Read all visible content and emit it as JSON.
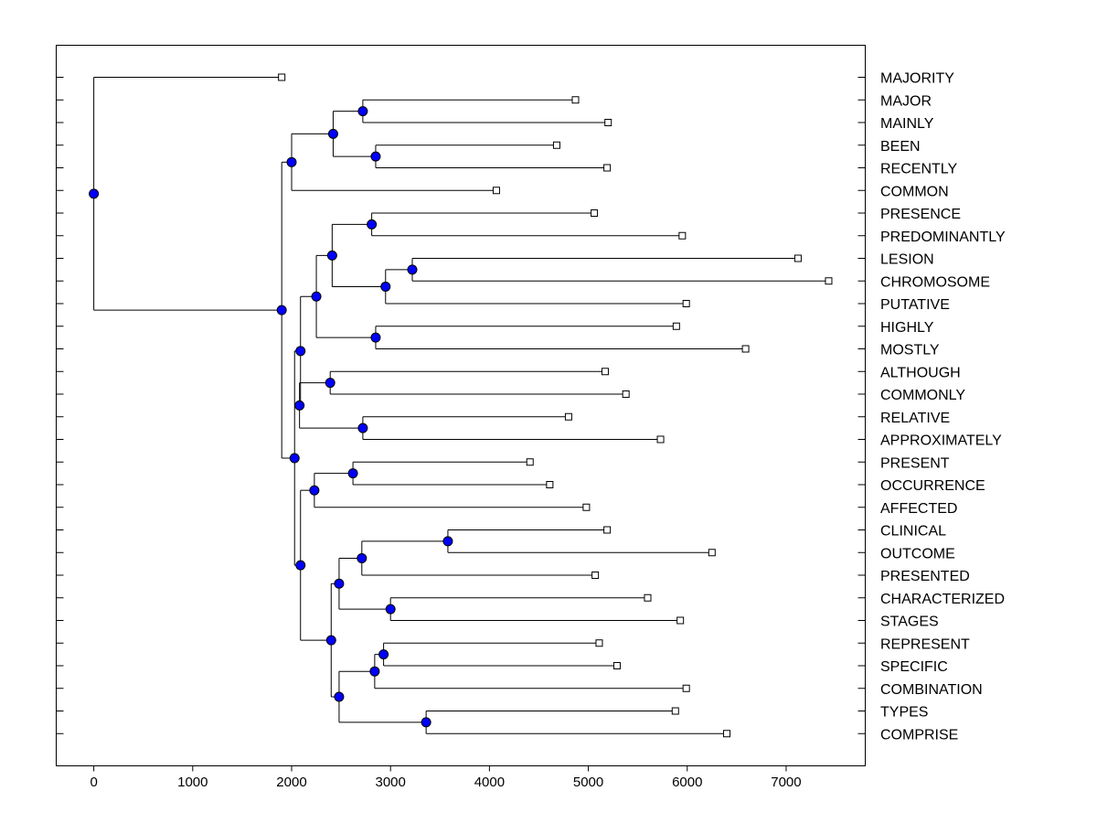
{
  "chart_data": {
    "type": "dendrogram",
    "title": "",
    "xlabel": "",
    "ylabel": "",
    "xlim": [
      -380,
      7800
    ],
    "xticks": [
      0,
      1000,
      2000,
      3000,
      4000,
      5000,
      6000,
      7000
    ],
    "xtick_labels": [
      "0",
      "1000",
      "2000",
      "3000",
      "4000",
      "5000",
      "6000",
      "7000"
    ],
    "colors": {
      "node": "#0000ff",
      "leaf": "#ffffff",
      "line": "#000000"
    },
    "leaves": [
      {
        "label": "MAJORITY",
        "value": 1900
      },
      {
        "label": "MAJOR",
        "value": 4870
      },
      {
        "label": "MAINLY",
        "value": 5200
      },
      {
        "label": "BEEN",
        "value": 4680
      },
      {
        "label": "RECENTLY",
        "value": 5190
      },
      {
        "label": "COMMON",
        "value": 4070
      },
      {
        "label": "PRESENCE",
        "value": 5060
      },
      {
        "label": "PREDOMINANTLY",
        "value": 5950
      },
      {
        "label": "LESION",
        "value": 7120
      },
      {
        "label": "CHROMOSOME",
        "value": 7430
      },
      {
        "label": "PUTATIVE",
        "value": 5990
      },
      {
        "label": "HIGHLY",
        "value": 5890
      },
      {
        "label": "MOSTLY",
        "value": 6590
      },
      {
        "label": "ALTHOUGH",
        "value": 5170
      },
      {
        "label": "COMMONLY",
        "value": 5380
      },
      {
        "label": "RELATIVE",
        "value": 4800
      },
      {
        "label": "APPROXIMATELY",
        "value": 5730
      },
      {
        "label": "PRESENT",
        "value": 4410
      },
      {
        "label": "OCCURRENCE",
        "value": 4610
      },
      {
        "label": "AFFECTED",
        "value": 4980
      },
      {
        "label": "CLINICAL",
        "value": 5190
      },
      {
        "label": "OUTCOME",
        "value": 6250
      },
      {
        "label": "PRESENTED",
        "value": 5070
      },
      {
        "label": "CHARACTERIZED",
        "value": 5600
      },
      {
        "label": "STAGES",
        "value": 5930
      },
      {
        "label": "REPRESENT",
        "value": 5110
      },
      {
        "label": "SPECIFIC",
        "value": 5290
      },
      {
        "label": "COMBINATION",
        "value": 5990
      },
      {
        "label": "TYPES",
        "value": 5880
      },
      {
        "label": "COMPRISE",
        "value": 6400
      }
    ],
    "merges": [
      {
        "id": "n_major_mainly",
        "value": 2720,
        "children": [
          "L1",
          "L2"
        ]
      },
      {
        "id": "n_been_recently",
        "value": 2850,
        "children": [
          "L3",
          "L4"
        ]
      },
      {
        "id": "n_maj_group",
        "value": 2420,
        "children": [
          "n_major_mainly",
          "n_been_recently"
        ]
      },
      {
        "id": "n_top_common",
        "value": 2000,
        "children": [
          "n_maj_group",
          "L5"
        ]
      },
      {
        "id": "n_presence",
        "value": 2810,
        "children": [
          "L6",
          "L7"
        ]
      },
      {
        "id": "n_lesion",
        "value": 3220,
        "children": [
          "L8",
          "L9"
        ]
      },
      {
        "id": "n_lesion_putative",
        "value": 2950,
        "children": [
          "n_lesion",
          "L10"
        ]
      },
      {
        "id": "n_presence_lesion",
        "value": 2410,
        "children": [
          "n_presence",
          "n_lesion_putative"
        ]
      },
      {
        "id": "n_highly",
        "value": 2850,
        "children": [
          "L11",
          "L12"
        ]
      },
      {
        "id": "n_pres_highly",
        "value": 2250,
        "children": [
          "n_presence_lesion",
          "n_highly"
        ]
      },
      {
        "id": "n_although",
        "value": 2390,
        "children": [
          "L13",
          "L14"
        ]
      },
      {
        "id": "n_relative",
        "value": 2720,
        "children": [
          "L15",
          "L16"
        ]
      },
      {
        "id": "n_although_relative",
        "value": 2080,
        "children": [
          "n_although",
          "n_relative"
        ]
      },
      {
        "id": "n_mid_upper",
        "value": 2090,
        "children": [
          "n_pres_highly",
          "n_although_relative"
        ]
      },
      {
        "id": "n_present",
        "value": 2620,
        "children": [
          "L17",
          "L18"
        ]
      },
      {
        "id": "n_present_affected",
        "value": 2230,
        "children": [
          "n_present",
          "L19"
        ]
      },
      {
        "id": "n_clinical",
        "value": 3580,
        "children": [
          "L20",
          "L21"
        ]
      },
      {
        "id": "n_clinical_presented",
        "value": 2710,
        "children": [
          "n_clinical",
          "L22"
        ]
      },
      {
        "id": "n_characterized",
        "value": 3000,
        "children": [
          "L23",
          "L24"
        ]
      },
      {
        "id": "n_clin_char",
        "value": 2480,
        "children": [
          "n_clinical_presented",
          "n_characterized"
        ]
      },
      {
        "id": "n_represent",
        "value": 2930,
        "children": [
          "L25",
          "L26"
        ]
      },
      {
        "id": "n_represent_comb",
        "value": 2840,
        "children": [
          "n_represent",
          "L27"
        ]
      },
      {
        "id": "n_types",
        "value": 3360,
        "children": [
          "L28",
          "L29"
        ]
      },
      {
        "id": "n_repr_types",
        "value": 2480,
        "children": [
          "n_represent_comb",
          "n_types"
        ]
      },
      {
        "id": "n_clin_repr",
        "value": 2400,
        "children": [
          "n_clin_char",
          "n_repr_types"
        ]
      },
      {
        "id": "n_lower",
        "value": 2090,
        "children": [
          "n_present_affected",
          "n_clin_repr"
        ]
      },
      {
        "id": "n_mid",
        "value": 2030,
        "children": [
          "n_mid_upper",
          "n_lower"
        ]
      },
      {
        "id": "n_main",
        "value": 1900,
        "children": [
          "n_top_common",
          "n_mid"
        ]
      },
      {
        "id": "n_root",
        "value": 0,
        "children": [
          "L0",
          "n_main"
        ]
      }
    ]
  }
}
